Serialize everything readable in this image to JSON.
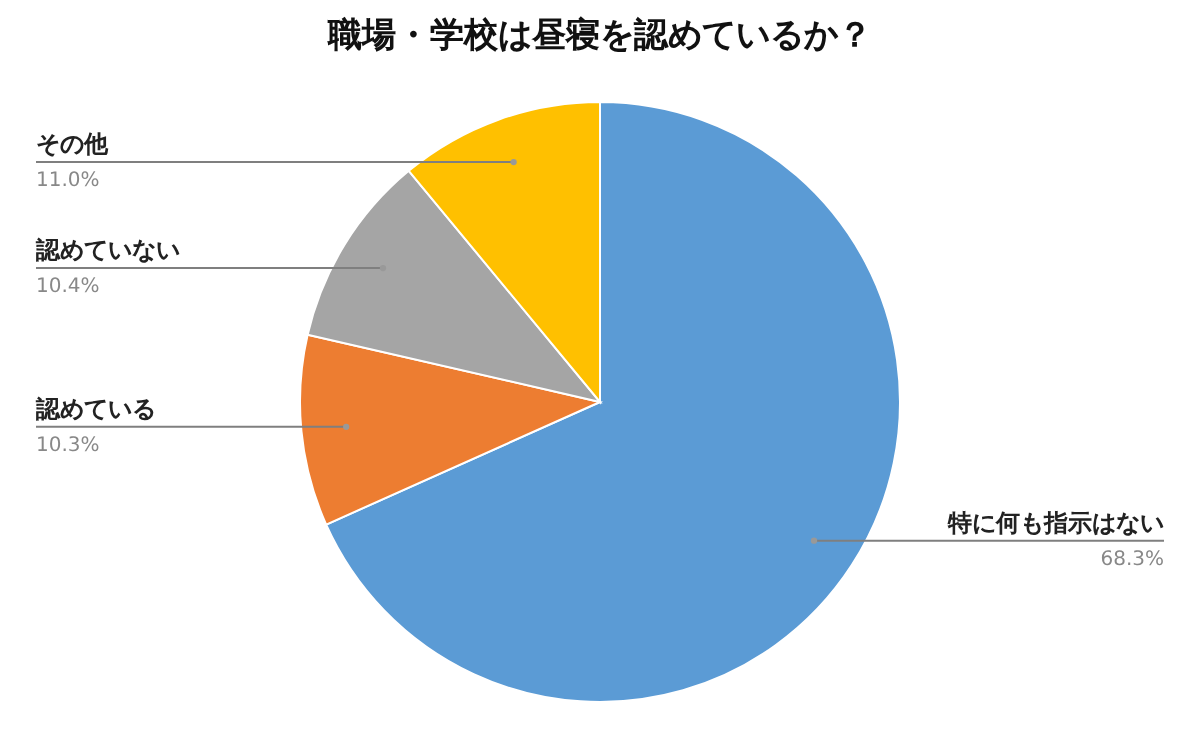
{
  "chart_data": {
    "type": "pie",
    "title": "職場・学校は昼寝を認めているか？",
    "categories": [
      "特に何も指示はない",
      "認めている",
      "認めていない",
      "その他"
    ],
    "values": [
      68.3,
      10.3,
      10.4,
      11.0
    ],
    "value_labels": [
      "68.3%",
      "10.3%",
      "10.4%",
      "11.0%"
    ],
    "colors": [
      "#5b9bd5",
      "#ed7d31",
      "#a5a5a5",
      "#ffc000"
    ]
  }
}
